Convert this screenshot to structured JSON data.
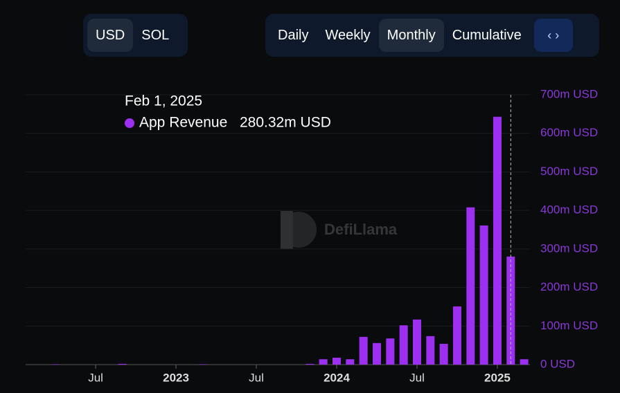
{
  "currency_buttons": [
    "USD",
    "SOL"
  ],
  "currency_active": 0,
  "period_buttons": [
    "Daily",
    "Weekly",
    "Monthly",
    "Cumulative"
  ],
  "period_active": 2,
  "watermark": "DefiLlama",
  "chart_data": {
    "type": "bar",
    "categories": [
      "2022-03",
      "2022-04",
      "2022-05",
      "2022-06",
      "2022-07",
      "2022-08",
      "2022-09",
      "2022-10",
      "2022-11",
      "2022-12",
      "2023-01",
      "2023-02",
      "2023-03",
      "2023-04",
      "2023-05",
      "2023-06",
      "2023-07",
      "2023-08",
      "2023-09",
      "2023-10",
      "2023-11",
      "2023-12",
      "2024-01",
      "2024-02",
      "2024-03",
      "2024-04",
      "2024-05",
      "2024-06",
      "2024-07",
      "2024-08",
      "2024-09",
      "2024-10",
      "2024-11",
      "2024-12",
      "2025-01",
      "2025-02",
      "2025-03"
    ],
    "series": [
      {
        "name": "App Revenue",
        "color": "#9d2ff0",
        "values": [
          0,
          1,
          0,
          0,
          0,
          0,
          2,
          0,
          0,
          0,
          0,
          0,
          1,
          0,
          0,
          0,
          0,
          0,
          0,
          0,
          2,
          14,
          18,
          14,
          72,
          56,
          68,
          102,
          117,
          74,
          54,
          151,
          408,
          361,
          643,
          280.32,
          14
        ]
      }
    ],
    "tooltip": {
      "date": "Feb 1, 2025",
      "index": 35,
      "value_label": "280.32m USD"
    },
    "xticks": [
      {
        "value": "2022-07",
        "label": "Jul"
      },
      {
        "value": "2023-01",
        "label": "2023"
      },
      {
        "value": "2023-07",
        "label": "Jul"
      },
      {
        "value": "2024-01",
        "label": "2024"
      },
      {
        "value": "2024-07",
        "label": "Jul"
      },
      {
        "value": "2025-01",
        "label": "2025"
      }
    ],
    "ylim": [
      0,
      700
    ],
    "yticks": [
      {
        "value": 0,
        "label": "0 USD"
      },
      {
        "value": 100,
        "label": "100m USD"
      },
      {
        "value": 200,
        "label": "200m USD"
      },
      {
        "value": 300,
        "label": "300m USD"
      },
      {
        "value": 400,
        "label": "400m USD"
      },
      {
        "value": 500,
        "label": "500m USD"
      },
      {
        "value": 600,
        "label": "600m USD"
      },
      {
        "value": 700,
        "label": "700m USD"
      }
    ],
    "grid": true
  }
}
